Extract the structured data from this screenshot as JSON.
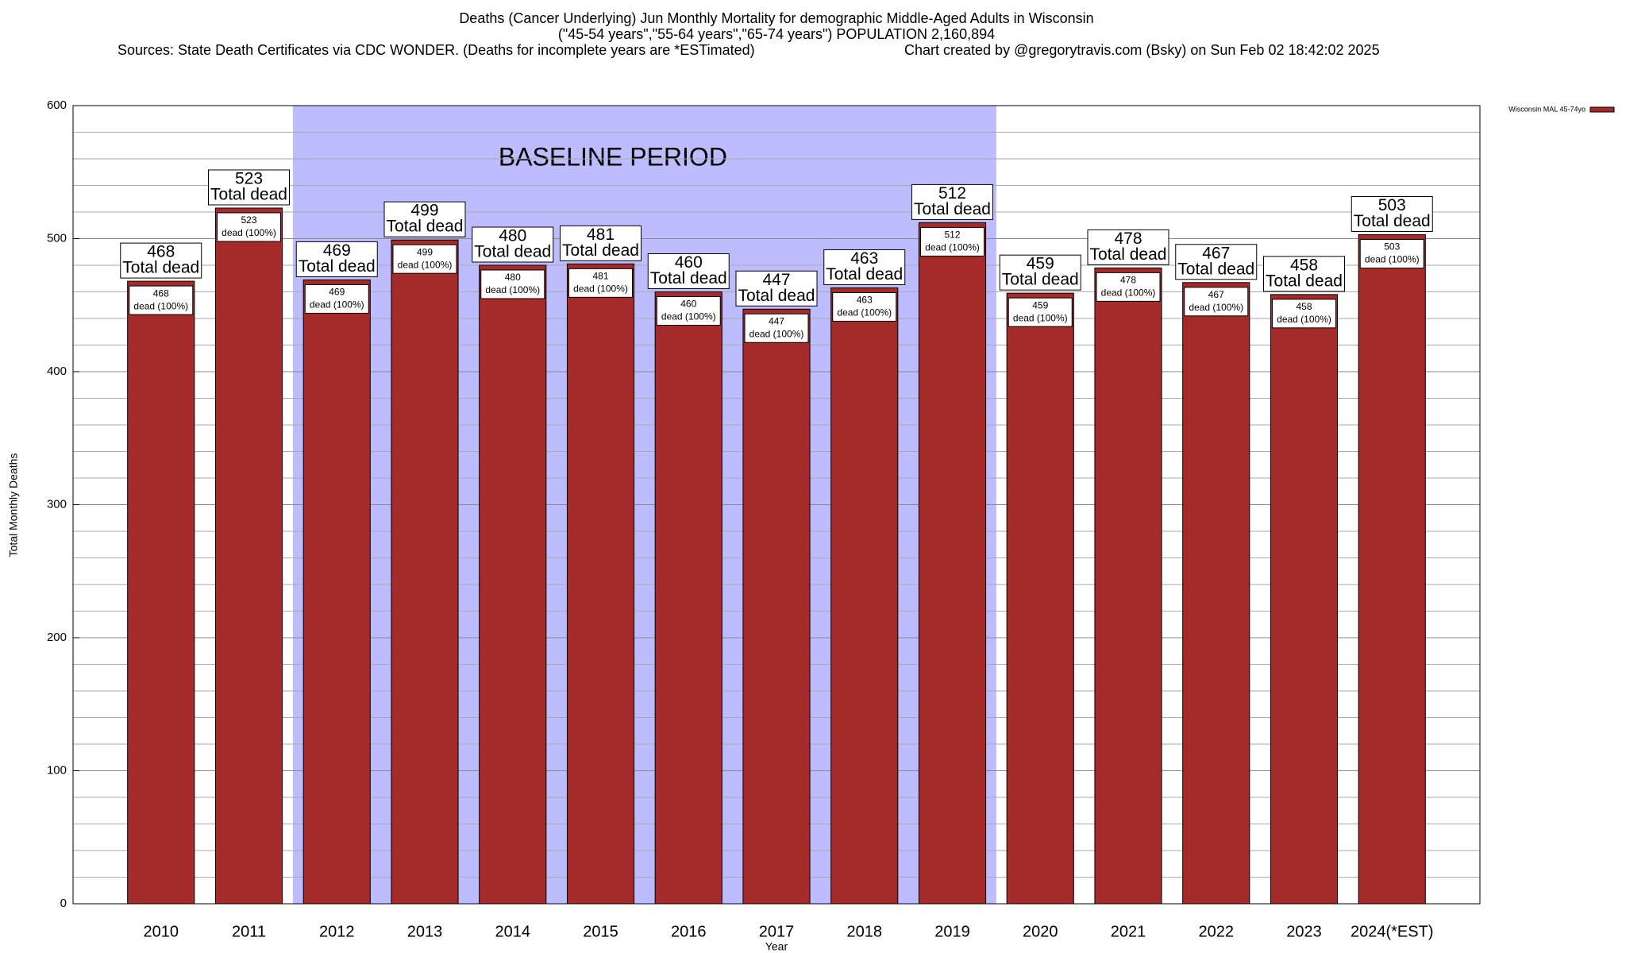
{
  "chart_data": {
    "type": "bar",
    "title": "Deaths (Cancer Underlying) Jun Monthly Mortality for demographic Middle-Aged Adults in Wisconsin",
    "subtitle": "(\"45-54 years\",\"55-64 years\",\"65-74 years\") POPULATION 2,160,894",
    "sources": "Sources: State Death Certificates via CDC WONDER. (Deaths for incomplete years are *ESTimated)",
    "credit": "Chart created by @gregorytravis.com (Bsky) on Sun Feb 02 18:42:02 2025",
    "x_label": "Year",
    "y_label": "Total Monthly Deaths",
    "categories": [
      "2010",
      "2011",
      "2012",
      "2013",
      "2014",
      "2015",
      "2016",
      "2017",
      "2018",
      "2019",
      "2020",
      "2021",
      "2022",
      "2023",
      "2024(*EST)"
    ],
    "series": [
      {
        "name": "Wisconsin MAL 45-74yo",
        "color": "#a52a2a",
        "values": [
          468,
          523,
          469,
          499,
          480,
          481,
          460,
          447,
          463,
          512,
          459,
          478,
          467,
          458,
          503
        ]
      }
    ],
    "total_label": "Total dead",
    "share_label": "dead (100%)",
    "shade": {
      "label": "BASELINE PERIOD",
      "from": "2012",
      "to": "2019",
      "color": "#bcbcff"
    },
    "ylim": [
      0,
      600
    ],
    "yticks": [
      0,
      100,
      200,
      300,
      400,
      500,
      600
    ],
    "minor_yticks": [
      20,
      40,
      60,
      80,
      120,
      140,
      160,
      180,
      220,
      240,
      260,
      280,
      320,
      340,
      360,
      380,
      420,
      440,
      460,
      480,
      520,
      540,
      560,
      580
    ],
    "grid": true,
    "legend": "upper right"
  }
}
